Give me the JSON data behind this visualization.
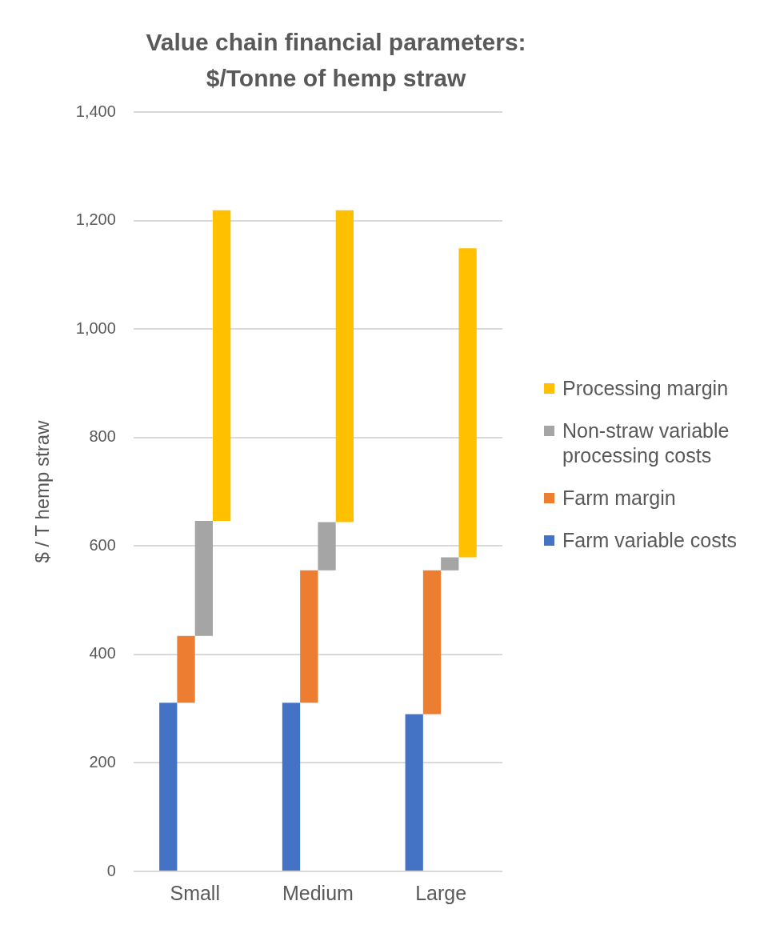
{
  "chart_data": {
    "type": "bar",
    "title": "Value chain financial parameters: $/Tonne of hemp straw",
    "ylabel": "$ / T hemp straw",
    "categories": [
      "Small",
      "Medium",
      "Large"
    ],
    "series": [
      {
        "name": "Farm variable costs",
        "color": "#4472c4",
        "base": [
          0,
          0,
          0
        ],
        "values": [
          311,
          311,
          290
        ]
      },
      {
        "name": "Farm margin",
        "color": "#ed7d31",
        "base": [
          311,
          311,
          290
        ],
        "values": [
          123,
          244,
          265
        ]
      },
      {
        "name": "Non-straw variable processing costs",
        "color": "#a5a5a5",
        "base": [
          434,
          555,
          555
        ],
        "values": [
          212,
          89,
          24
        ]
      },
      {
        "name": "Processing margin",
        "color": "#ffc000",
        "base": [
          646,
          644,
          579
        ],
        "values": [
          573,
          575,
          570
        ]
      }
    ],
    "ylim": [
      0,
      1400
    ],
    "yticks": [
      0,
      200,
      400,
      600,
      800,
      {
        "value": 1000,
        "label": "1,000"
      },
      {
        "value": 1200,
        "label": "1,200"
      },
      {
        "value": 1400,
        "label": "1,400"
      }
    ],
    "grid": "y",
    "legend": "right"
  }
}
